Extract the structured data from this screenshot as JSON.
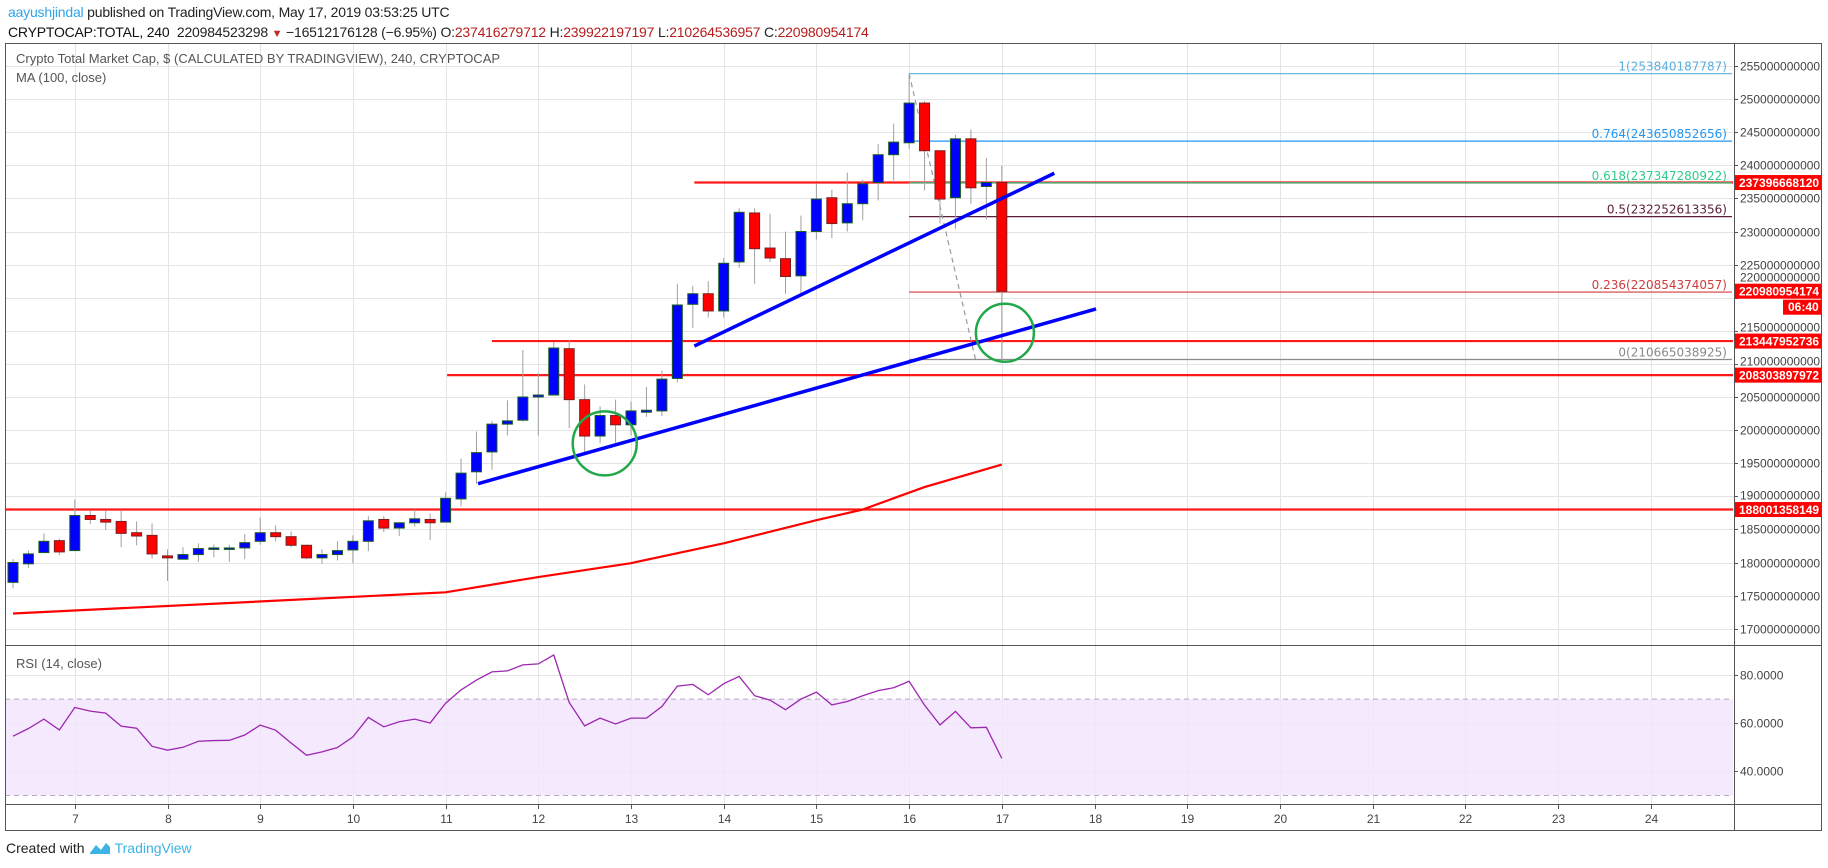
{
  "header": {
    "author": "aayushjindal",
    "published": "published on TradingView.com, May 17, 2019 03:53:25 UTC",
    "symbol": "CRYPTOCAP:TOTAL, 240",
    "last": "220984523298",
    "change": "−16512176128 (−6.95%)",
    "o_label": "O:",
    "o_value": "237416279712",
    "h_label": "H:",
    "h_value": "239922197197",
    "l_label": "L:",
    "l_value": "210264536957",
    "c_label": "C:",
    "c_value": "220980954174",
    "down_icon": "triangle-down-icon"
  },
  "footer": {
    "created_with": "Created with",
    "brand": "TradingView",
    "logo_icon": "tradingview-logo-icon"
  },
  "colors": {
    "up": "#0000ff",
    "up_border": "#1b5e20",
    "down": "#ff0000",
    "down_border": "#7b1f1f",
    "wick": "#a0a0a0",
    "ma": "#ff0000",
    "rsi": "#9c27b0",
    "rsi_band": "#f3e6fd",
    "trendline": "#0000ff",
    "circle": "#22a84a",
    "support": "#ff0000",
    "tag": "#ff0000"
  },
  "chart_data": {
    "type": "candlestick",
    "title": "Crypto Total Market Cap, $ (CALCULATED BY TRADINGVIEW), 240, CRYPTOCAP",
    "ma_label": "MA (100, close)",
    "rsi_label": "RSI (14, close)",
    "ylim": [
      168000000000,
      258500000000
    ],
    "y_ticks": [
      "170000000000",
      "175000000000",
      "180000000000",
      "185000000000",
      "190000000000",
      "195000000000",
      "200000000000",
      "205000000000",
      "210000000000",
      "215000000000",
      "220000000000",
      "225000000000",
      "230000000000",
      "235000000000",
      "240000000000",
      "245000000000",
      "250000000000",
      "255000000000"
    ],
    "x_ticks": [
      "7",
      "8",
      "9",
      "10",
      "11",
      "12",
      "13",
      "14",
      "15",
      "16",
      "17",
      "18",
      "19",
      "20",
      "21",
      "22",
      "23",
      "24"
    ],
    "rsi_ticks": [
      "80.0000",
      "60.0000",
      "40.0000"
    ],
    "rsi_band": [
      30,
      70
    ],
    "grid": true,
    "candles": [
      [
        "05-06 08:00",
        177000000000.0,
        180500000000.0,
        176100000000.0,
        180000000000.0
      ],
      [
        "05-06 12:00",
        179800000000.0,
        181800000000.0,
        179200000000.0,
        181300000000.0
      ],
      [
        "05-06 16:00",
        181500000000.0,
        184400000000.0,
        181500000000.0,
        183200000000.0
      ],
      [
        "05-06 20:00",
        183300000000.0,
        183600000000.0,
        181100000000.0,
        181600000000.0
      ],
      [
        "05-07 00:00",
        181800000000.0,
        189500000000.0,
        181800000000.0,
        187100000000.0
      ],
      [
        "05-07 04:00",
        187100000000.0,
        187800000000.0,
        185800000000.0,
        186500000000.0
      ],
      [
        "05-07 08:00",
        186500000000.0,
        187800000000.0,
        184900000000.0,
        186100000000.0
      ],
      [
        "05-07 12:00",
        186200000000.0,
        187800000000.0,
        182300000000.0,
        184400000000.0
      ],
      [
        "05-07 16:00",
        184500000000.0,
        186200000000.0,
        182600000000.0,
        184000000000.0
      ],
      [
        "05-07 20:00",
        184100000000.0,
        185900000000.0,
        180600000000.0,
        181300000000.0
      ],
      [
        "05-08 00:00",
        181000000000.0,
        182000000000.0,
        177200000000.0,
        180700000000.0
      ],
      [
        "05-08 04:00",
        180500000000.0,
        182300000000.0,
        180500000000.0,
        181200000000.0
      ],
      [
        "05-08 08:00",
        181200000000.0,
        182900000000.0,
        180100000000.0,
        182100000000.0
      ],
      [
        "05-08 12:00",
        182100000000.0,
        182700000000.0,
        180800000000.0,
        182200000000.0
      ],
      [
        "05-08 16:00",
        182200000000.0,
        182700000000.0,
        180100000000.0,
        182200000000.0
      ],
      [
        "05-08 20:00",
        182200000000.0,
        184300000000.0,
        180500000000.0,
        183000000000.0
      ],
      [
        "05-09 00:00",
        183200000000.0,
        186800000000.0,
        182700000000.0,
        184500000000.0
      ],
      [
        "05-09 04:00",
        184500000000.0,
        185600000000.0,
        183200000000.0,
        183900000000.0
      ],
      [
        "05-09 08:00",
        183900000000.0,
        184700000000.0,
        182300000000.0,
        182600000000.0
      ],
      [
        "05-09 12:00",
        182600000000.0,
        182700000000.0,
        180500000000.0,
        180700000000.0
      ],
      [
        "05-09 16:00",
        180700000000.0,
        182000000000.0,
        179800000000.0,
        181200000000.0
      ],
      [
        "05-09 20:00",
        181200000000.0,
        183200000000.0,
        180300000000.0,
        181800000000.0
      ],
      [
        "05-10 00:00",
        181900000000.0,
        184100000000.0,
        179900000000.0,
        183200000000.0
      ],
      [
        "05-10 04:00",
        183200000000.0,
        187000000000.0,
        181700000000.0,
        186300000000.0
      ],
      [
        "05-10 08:00",
        186500000000.0,
        187000000000.0,
        184600000000.0,
        185200000000.0
      ],
      [
        "05-10 12:00",
        185200000000.0,
        186100000000.0,
        184000000000.0,
        186000000000.0
      ],
      [
        "05-10 16:00",
        186000000000.0,
        188000000000.0,
        185400000000.0,
        186600000000.0
      ],
      [
        "05-10 20:00",
        186500000000.0,
        187400000000.0,
        183400000000.0,
        186000000000.0
      ],
      [
        "05-11 00:00",
        186100000000.0,
        190600000000.0,
        186100000000.0,
        189700000000.0
      ],
      [
        "05-11 04:00",
        189600000000.0,
        195700000000.0,
        188500000000.0,
        193500000000.0
      ],
      [
        "05-11 08:00",
        193700000000.0,
        199800000000.0,
        191900000000.0,
        196600000000.0
      ],
      [
        "05-11 12:00",
        196700000000.0,
        201400000000.0,
        194000000000.0,
        200900000000.0
      ],
      [
        "05-11 16:00",
        200900000000.0,
        204500000000.0,
        199200000000.0,
        201400000000.0
      ],
      [
        "05-11 20:00",
        201500000000.0,
        212100000000.0,
        201300000000.0,
        205000000000.0
      ],
      [
        "05-12 00:00",
        205000000000.0,
        208600000000.0,
        199200000000.0,
        205300000000.0
      ],
      [
        "05-12 04:00",
        205300000000.0,
        213300000000.0,
        205300000000.0,
        212400000000.0
      ],
      [
        "05-12 08:00",
        212300000000.0,
        213600000000.0,
        200300000000.0,
        204600000000.0
      ],
      [
        "05-12 12:00",
        204600000000.0,
        206900000000.0,
        196500000000.0,
        199100000000.0
      ],
      [
        "05-12 16:00",
        199100000000.0,
        203600000000.0,
        198000000000.0,
        202200000000.0
      ],
      [
        "05-12 20:00",
        202200000000.0,
        204600000000.0,
        198100000000.0,
        200800000000.0
      ],
      [
        "05-13 00:00",
        200800000000.0,
        204300000000.0,
        199200000000.0,
        202900000000.0
      ],
      [
        "05-13 04:00",
        202700000000.0,
        206500000000.0,
        202000000000.0,
        203000000000.0
      ],
      [
        "05-13 08:00",
        202900000000.0,
        209000000000.0,
        202100000000.0,
        207700000000.0
      ],
      [
        "05-13 12:00",
        207800000000.0,
        222100000000.0,
        207200000000.0,
        218900000000.0
      ],
      [
        "05-13 16:00",
        219000000000.0,
        221800000000.0,
        215400000000.0,
        220600000000.0
      ],
      [
        "05-13 20:00",
        220600000000.0,
        222500000000.0,
        217000000000.0,
        218000000000.0
      ],
      [
        "05-14 00:00",
        218000000000.0,
        226000000000.0,
        217000000000.0,
        225200000000.0
      ],
      [
        "05-14 04:00",
        225400000000.0,
        233500000000.0,
        224500000000.0,
        232900000000.0
      ],
      [
        "05-14 08:00",
        232800000000.0,
        233500000000.0,
        222100000000.0,
        227400000000.0
      ],
      [
        "05-14 12:00",
        227500000000.0,
        232700000000.0,
        225400000000.0,
        226000000000.0
      ],
      [
        "05-14 16:00",
        225900000000.0,
        230000000000.0,
        220600000000.0,
        223200000000.0
      ],
      [
        "05-14 20:00",
        223300000000.0,
        232400000000.0,
        220600000000.0,
        230000000000.0
      ],
      [
        "05-15 00:00",
        230000000000.0,
        237200000000.0,
        228800000000.0,
        234900000000.0
      ],
      [
        "05-15 04:00",
        235100000000.0,
        236300000000.0,
        229000000000.0,
        231200000000.0
      ],
      [
        "05-15 08:00",
        231300000000.0,
        238900000000.0,
        230000000000.0,
        234200000000.0
      ],
      [
        "05-15 12:00",
        234200000000.0,
        237800000000.0,
        231700000000.0,
        237200000000.0
      ],
      [
        "05-15 16:00",
        237400000000.0,
        243200000000.0,
        234700000000.0,
        241600000000.0
      ],
      [
        "05-15 20:00",
        241600000000.0,
        246300000000.0,
        237700000000.0,
        243500000000.0
      ],
      [
        "05-16 00:00",
        243400000000.0,
        253840000000.0,
        242500000000.0,
        249400000000.0
      ],
      [
        "05-16 04:00",
        249400000000.0,
        249700000000.0,
        236200000000.0,
        242200000000.0
      ],
      [
        "05-16 08:00",
        242200000000.0,
        242200000000.0,
        231200000000.0,
        234900000000.0
      ],
      [
        "05-16 12:00",
        235100000000.0,
        244600000000.0,
        230400000000.0,
        244000000000.0
      ],
      [
        "05-16 16:00",
        244000000000.0,
        245400000000.0,
        234200000000.0,
        236600000000.0
      ],
      [
        "05-16 20:00",
        236800000000.0,
        241100000000.0,
        231800000000.0,
        237400000000.0
      ],
      [
        "05-17 00:00",
        237416279712,
        239922197197,
        210264536957,
        220980954174
      ]
    ],
    "ma_100": [
      [
        "05-06 08:00",
        172300000000.0
      ],
      [
        "05-08 20:00",
        174000000000.0
      ],
      [
        "05-11 00:00",
        175500000000.0
      ],
      [
        "05-12 00:00",
        177800000000.0
      ],
      [
        "05-13 00:00",
        179900000000.0
      ],
      [
        "05-14 00:00",
        182900000000.0
      ],
      [
        "05-15 00:00",
        186400000000.0
      ],
      [
        "05-15 12:00",
        188000000000.0
      ],
      [
        "05-16 04:00",
        191400000000.0
      ],
      [
        "05-17 00:00",
        194800000000.0
      ]
    ],
    "rsi": [
      54.6,
      57.8,
      61.7,
      57.2,
      66.5,
      65.0,
      64.2,
      58.8,
      57.9,
      50.4,
      48.8,
      50.0,
      52.5,
      52.8,
      52.9,
      55.1,
      59.2,
      57.1,
      51.8,
      46.7,
      48.1,
      49.9,
      54.3,
      62.4,
      58.5,
      60.6,
      61.7,
      60.1,
      68.3,
      73.8,
      77.9,
      81.3,
      81.7,
      84.2,
      84.6,
      88.3,
      68.6,
      58.9,
      62.1,
      59.7,
      62.1,
      62.1,
      66.9,
      75.4,
      76.1,
      71.8,
      76.4,
      79.4,
      71.4,
      69.6,
      65.6,
      70.0,
      72.9,
      67.6,
      69.0,
      71.4,
      73.5,
      74.7,
      77.4,
      67.5,
      59.3,
      64.9,
      58.1,
      58.3,
      45.4
    ],
    "horizontal_lines": [
      {
        "price": 237396668120,
        "from": "05-13 16:24",
        "label": "237396668120"
      },
      {
        "price": 213447952736,
        "from": "05-11 12:00",
        "label": "213447952736"
      },
      {
        "price": 208303897972,
        "from": "05-11 00:24",
        "label": "208303897972"
      },
      {
        "price": 188001358149,
        "from": "05-06 04:00",
        "label": "188001358149"
      }
    ],
    "last_price_tag": {
      "price": 220980954174,
      "label": "220980954174",
      "countdown": "06:40"
    },
    "fibonacci": {
      "from": "05-16 00:00",
      "to": "05-16 17:12",
      "levels": [
        {
          "label": "1(253840187787)",
          "price": 253840187787,
          "color": "#5aafdf"
        },
        {
          "label": "0.764(243650852656)",
          "price": 243650852656,
          "color": "#2196f3"
        },
        {
          "label": "0.618(237347280922)",
          "price": 237347280922,
          "color": "#2ecc8a"
        },
        {
          "label": "0.5(232252613356)",
          "price": 232252613356,
          "color": "#5b1f3d"
        },
        {
          "label": "0.236(220854374057)",
          "price": 220854374057,
          "color": "#d03c3c"
        },
        {
          "label": "0(210665038925)",
          "price": 210665038925,
          "color": "#8a8a8a"
        }
      ]
    },
    "trendlines": [
      {
        "from": [
          "05-13 16:24",
          212700000000.0
        ],
        "to": [
          "05-17 13:36",
          238800000000.0
        ]
      },
      {
        "from": [
          "05-11 08:24",
          191900000000.0
        ],
        "to": [
          "05-18 00:24",
          218300000000.0
        ]
      }
    ],
    "circles": [
      {
        "center": [
          "05-12 17:12",
          198000000000.0
        ]
      },
      {
        "center": [
          "05-17 00:48",
          214700000000.0
        ]
      }
    ]
  }
}
